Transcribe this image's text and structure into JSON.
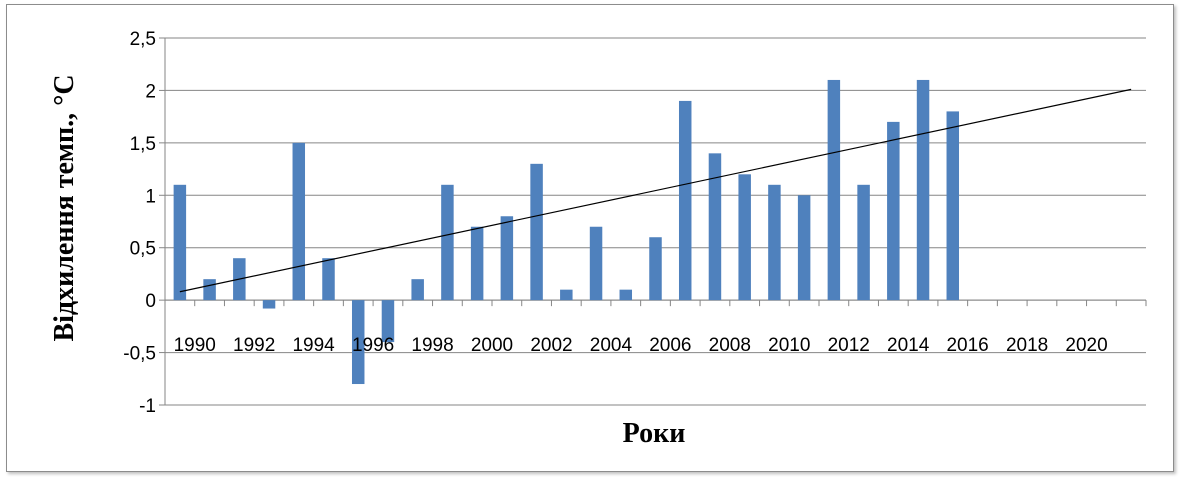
{
  "chart_data": {
    "type": "bar",
    "title": "",
    "xlabel": "Роки",
    "ylabel": "Відхилення темп., °С",
    "ylim": [
      -1,
      2.5
    ],
    "yticks": [
      "-1",
      "-0,5",
      "0",
      "0,5",
      "1",
      "1,5",
      "2",
      "2,5"
    ],
    "x_tick_labels": [
      "1990",
      "1992",
      "1994",
      "1996",
      "1998",
      "2000",
      "2002",
      "2004",
      "2006",
      "2008",
      "2010",
      "2012",
      "2014",
      "2016",
      "2018",
      "2020"
    ],
    "x_range": [
      1990,
      2022
    ],
    "grid": "horizontal",
    "legend": "none",
    "bar_color": "#4f81bd",
    "trendline_color": "#000000",
    "categories": [
      1990,
      1991,
      1992,
      1993,
      1994,
      1995,
      1996,
      1997,
      1998,
      1999,
      2000,
      2001,
      2002,
      2003,
      2004,
      2005,
      2006,
      2007,
      2008,
      2009,
      2010,
      2011,
      2012,
      2013,
      2014,
      2015,
      2016
    ],
    "values": [
      1.1,
      0.2,
      0.4,
      -0.08,
      1.5,
      0.4,
      -0.8,
      -0.4,
      0.2,
      1.1,
      0.7,
      0.8,
      1.3,
      0.1,
      0.7,
      0.1,
      0.6,
      1.9,
      1.4,
      1.2,
      1.1,
      1.0,
      2.1,
      1.1,
      1.7,
      2.1,
      1.8
    ],
    "trendline": {
      "x": [
        1990,
        2022
      ],
      "y": [
        0.08,
        2.01
      ]
    }
  }
}
